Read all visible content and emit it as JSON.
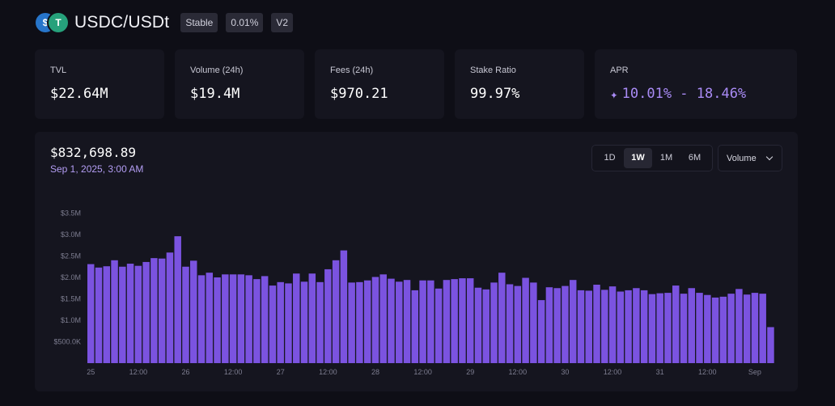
{
  "header": {
    "coin_a_glyph": "$",
    "coin_b_glyph": "T",
    "title": "USDC/USDt",
    "badges": [
      "Stable",
      "0.01%",
      "V2"
    ]
  },
  "stats": [
    {
      "label": "TVL",
      "value": "$22.64M"
    },
    {
      "label": "Volume (24h)",
      "value": "$19.4M"
    },
    {
      "label": "Fees (24h)",
      "value": "$970.21"
    },
    {
      "label": "Stake Ratio",
      "value": "99.97%"
    },
    {
      "label": "APR",
      "value": "10.01% - 18.46%"
    }
  ],
  "chart_panel": {
    "current_value": "$832,698.89",
    "current_date": "Sep 1, 2025, 3:00 AM",
    "ranges": [
      "1D",
      "1W",
      "1M",
      "6M"
    ],
    "active_range": "1W",
    "metric_select": "Volume"
  },
  "colors": {
    "bar": "#7b53e0",
    "accent": "#a98bf5",
    "background": "#0e0e16",
    "card": "#15151f"
  },
  "chart_data": {
    "type": "bar",
    "ylim": [
      0,
      3500000
    ],
    "yticks": [
      500000,
      1000000,
      1500000,
      2000000,
      2500000,
      3000000,
      3500000
    ],
    "ytick_labels": [
      "$500.0K",
      "$1.0M",
      "$1.5M",
      "$2.0M",
      "$2.5M",
      "$3.0M",
      "$3.5M"
    ],
    "xtick_labels": [
      {
        "label": "25",
        "index": 0
      },
      {
        "label": "12:00",
        "index": 6
      },
      {
        "label": "26",
        "index": 12
      },
      {
        "label": "12:00",
        "index": 18
      },
      {
        "label": "27",
        "index": 24
      },
      {
        "label": "12:00",
        "index": 30
      },
      {
        "label": "28",
        "index": 36
      },
      {
        "label": "12:00",
        "index": 42
      },
      {
        "label": "29",
        "index": 48
      },
      {
        "label": "12:00",
        "index": 54
      },
      {
        "label": "30",
        "index": 60
      },
      {
        "label": "12:00",
        "index": 66
      },
      {
        "label": "31",
        "index": 72
      },
      {
        "label": "12:00",
        "index": 78
      },
      {
        "label": "Sep",
        "index": 84
      }
    ],
    "values": [
      2310000,
      2230000,
      2260000,
      2400000,
      2250000,
      2320000,
      2270000,
      2360000,
      2450000,
      2440000,
      2580000,
      2960000,
      2250000,
      2390000,
      2050000,
      2110000,
      2000000,
      2070000,
      2070000,
      2070000,
      2050000,
      1960000,
      2030000,
      1810000,
      1890000,
      1860000,
      2090000,
      1900000,
      2090000,
      1890000,
      2190000,
      2400000,
      2630000,
      1880000,
      1890000,
      1930000,
      2010000,
      2070000,
      1970000,
      1900000,
      1940000,
      1700000,
      1930000,
      1930000,
      1740000,
      1940000,
      1960000,
      1980000,
      1980000,
      1760000,
      1720000,
      1880000,
      2110000,
      1840000,
      1800000,
      1990000,
      1880000,
      1470000,
      1770000,
      1750000,
      1800000,
      1940000,
      1700000,
      1690000,
      1830000,
      1710000,
      1790000,
      1670000,
      1700000,
      1750000,
      1700000,
      1610000,
      1630000,
      1640000,
      1810000,
      1620000,
      1750000,
      1640000,
      1590000,
      1530000,
      1550000,
      1620000,
      1730000,
      1600000,
      1640000,
      1620000,
      840000
    ]
  }
}
